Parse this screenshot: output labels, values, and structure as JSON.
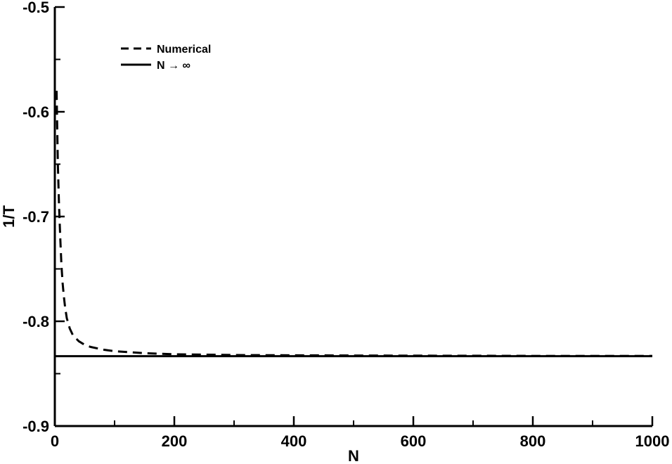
{
  "chart_data": {
    "type": "line",
    "title": "",
    "xlabel": "N",
    "ylabel": "1/T",
    "xlim": [
      0,
      1000
    ],
    "ylim": [
      -0.9,
      -0.5
    ],
    "x_major_ticks": [
      0,
      200,
      400,
      600,
      800,
      1000
    ],
    "x_tick_labels": [
      "0",
      "200",
      "400",
      "600",
      "800",
      "1000"
    ],
    "x_minor_ticks": [
      100,
      300,
      500,
      700,
      900
    ],
    "y_major_ticks": [
      -0.9,
      -0.8,
      -0.7,
      -0.6,
      -0.5
    ],
    "y_tick_labels": [
      "-0.9",
      "-0.8",
      "-0.7",
      "-0.6",
      "-0.5"
    ],
    "y_minor_ticks": [
      -0.85,
      -0.75,
      -0.65,
      -0.55
    ],
    "grid": false,
    "legend_position": "top-left",
    "series": [
      {
        "name": "Numerical",
        "style": "dashed",
        "color": "#000000",
        "x": [
          3,
          5,
          7,
          9,
          11,
          13,
          15,
          17,
          20,
          25,
          30,
          40,
          50,
          60,
          80,
          100,
          150,
          200,
          300,
          400,
          500,
          600,
          700,
          800,
          900,
          1000
        ],
        "y": [
          -0.58,
          -0.65,
          -0.69,
          -0.72,
          -0.745,
          -0.763,
          -0.776,
          -0.786,
          -0.797,
          -0.807,
          -0.813,
          -0.819,
          -0.8225,
          -0.8245,
          -0.827,
          -0.8285,
          -0.8305,
          -0.8315,
          -0.8322,
          -0.8325,
          -0.8327,
          -0.8328,
          -0.8329,
          -0.833,
          -0.833,
          -0.833
        ]
      },
      {
        "name": "N → ∞",
        "style": "solid",
        "color": "#000000",
        "x": [
          0,
          1000
        ],
        "y": [
          -0.8333,
          -0.8333
        ]
      }
    ]
  }
}
